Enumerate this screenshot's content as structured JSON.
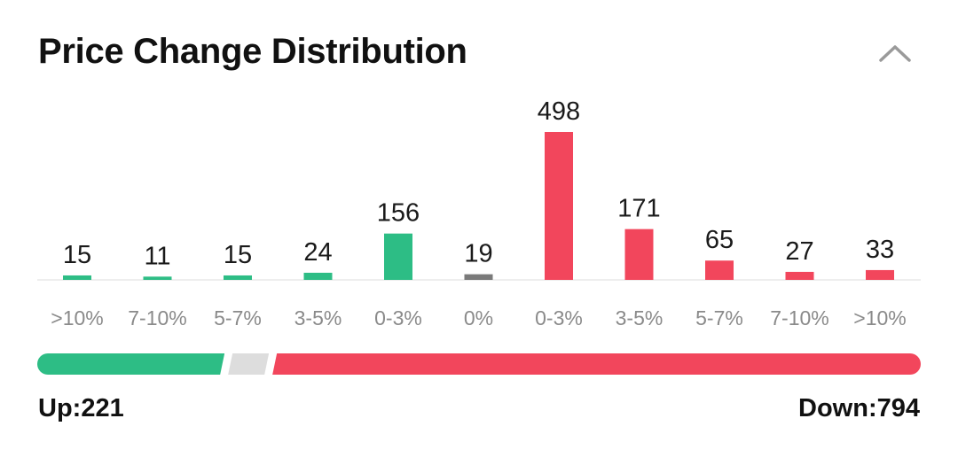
{
  "title": "Price Change Distribution",
  "collapse_icon": "chevron-up-icon",
  "colors": {
    "up": "#2dbd85",
    "flat": "#7a7a7a",
    "down": "#f2465c",
    "neutral_segment": "#dddddd",
    "baseline": "#eeeeee"
  },
  "chart_data": {
    "type": "bar",
    "title": "Price Change Distribution",
    "categories": [
      ">10%",
      "7-10%",
      "5-7%",
      "3-5%",
      "0-3%",
      "0%",
      "0-3%",
      "3-5%",
      "5-7%",
      "7-10%",
      ">10%"
    ],
    "values": [
      15,
      11,
      15,
      24,
      156,
      19,
      498,
      171,
      65,
      27,
      33
    ],
    "groups": [
      "up",
      "up",
      "up",
      "up",
      "up",
      "flat",
      "down",
      "down",
      "down",
      "down",
      "down"
    ],
    "data_labels": true,
    "grid": false,
    "ylim": [
      0,
      498
    ]
  },
  "summary": {
    "up_label": "Up:221",
    "down_label": "Down:794",
    "up_count": 221,
    "flat_count": 19,
    "down_count": 794
  }
}
